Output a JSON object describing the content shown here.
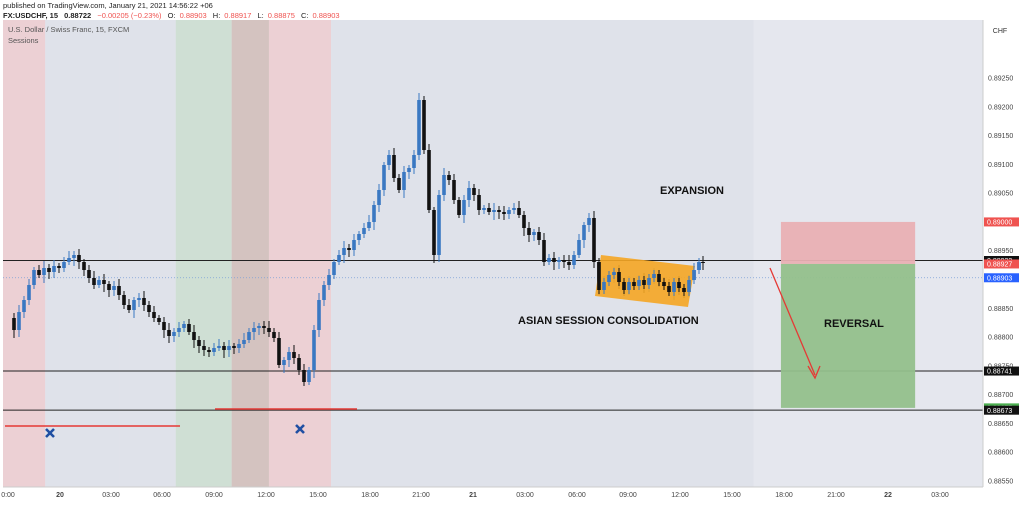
{
  "header": {
    "published": "published on TradingView.com, January 21, 2021 14:56:22 +06",
    "symbol": "FX:USDCHF, 15",
    "last": "0.88722",
    "change": "−0.00205 (−0.23%)",
    "open_label": "O:",
    "open": "0.88903",
    "high_label": "H:",
    "high": "0.88917",
    "low_label": "L:",
    "low": "0.88875",
    "close_label": "C:",
    "close": "0.88903"
  },
  "legend": {
    "title": "U.S. Dollar / Swiss Franc, 15, FXCM",
    "indicator": "Sessions"
  },
  "colors": {
    "up": "#3a78c2",
    "down": "#111111",
    "session_gray": "#dfe2ea",
    "session_brown": "#d4c3c0",
    "session_pink": "#ecd0d4",
    "session_green": "#cfdfd4",
    "target_red": "#e9b0b3",
    "target_green": "#93c08b",
    "consolidation": "#f5a623",
    "arrow": "#e53935",
    "marker": "#1f4fa3"
  },
  "chart_data": {
    "type": "candlestick",
    "currency": "CHF",
    "ylim": [
      0.88545,
      0.88965
    ],
    "y_ticks": [
      "0.88950",
      "0.88900",
      "0.88850",
      "0.88800",
      "0.88750",
      "0.88700",
      "0.88650",
      "0.88600",
      "0.88550",
      "0.89250",
      "0.89200",
      "0.89150",
      "0.89100",
      "0.89050",
      "0.89000"
    ],
    "y_tick_values": [
      0.8895,
      0.889,
      0.8885,
      0.888,
      0.8875,
      0.887,
      0.8865,
      0.886,
      0.8855,
      0.8925,
      0.892,
      0.8915,
      0.891,
      0.8905,
      0.89
    ],
    "x_ticks": [
      "0:00",
      "20",
      "03:00",
      "06:00",
      "09:00",
      "12:00",
      "15:00",
      "18:00",
      "21:00",
      "21",
      "03:00",
      "06:00",
      "09:00",
      "12:00",
      "15:00",
      "18:00",
      "21:00",
      "22",
      "03:00"
    ],
    "x_tick_hours": [
      0,
      24,
      27,
      30,
      33,
      36,
      39,
      42,
      45,
      48,
      51,
      54,
      57,
      60,
      63,
      66,
      69,
      72,
      75
    ],
    "price_labels": [
      {
        "value": 0.89,
        "text": "0.89000",
        "bg": "#ef5350",
        "fg": "#ffffff"
      },
      {
        "value": 0.88933,
        "text": "0.88933",
        "bg": "#111111",
        "fg": "#ffffff"
      },
      {
        "value": 0.88927,
        "text": "0.88927",
        "bg": "#ef5350",
        "fg": "#ffffff"
      },
      {
        "value": 0.88903,
        "text": "0.88903",
        "bg": "#2962ff",
        "fg": "#ffffff"
      },
      {
        "value": 0.88741,
        "text": "0.88741",
        "bg": "#111111",
        "fg": "#ffffff"
      },
      {
        "value": 0.88677,
        "text": "0.88677",
        "bg": "#4caf50",
        "fg": "#ffffff"
      },
      {
        "value": 0.88673,
        "text": "0.88673",
        "bg": "#111111",
        "fg": "#ffffff"
      }
    ],
    "horizontal_lines": [
      0.88933,
      0.88741,
      0.88673
    ],
    "current_price": 0.88903,
    "sessions": [
      {
        "from": -3,
        "to": -1.5,
        "kind": "session_brown"
      },
      {
        "from": -1.5,
        "to": 3,
        "kind": "session_pink"
      },
      {
        "from": 3,
        "to": 9,
        "kind": "session_gray"
      },
      {
        "from": 9,
        "to": 13.5,
        "kind": "session_gray"
      },
      {
        "from": 13.5,
        "to": 18,
        "kind": "session_green"
      },
      {
        "from": 18,
        "to": 21,
        "kind": "session_brown"
      },
      {
        "from": 21,
        "to": 26,
        "kind": "session_pink"
      },
      {
        "from": 26,
        "to": 60,
        "kind": "session_gray"
      }
    ],
    "target_boxes": [
      {
        "label": "EXPANSION",
        "kind": "target_red",
        "x0": 62.2,
        "x1": 73.0,
        "y0": 0.89,
        "y1": 0.88927
      },
      {
        "label": "REVERSAL",
        "kind": "target_green",
        "x0": 62.2,
        "x1": 73.0,
        "y0": 0.88927,
        "y1": 0.88677
      }
    ],
    "consolidation_label": "ASIAN SESSION CONSOLIDATION",
    "expansion_label": "EXPANSION",
    "reversal_label": "REVERSAL"
  }
}
